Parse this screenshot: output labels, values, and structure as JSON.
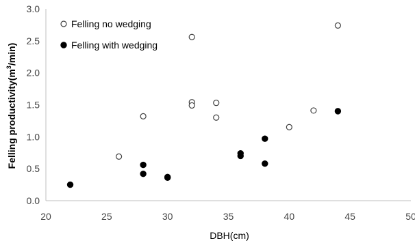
{
  "chart_data": {
    "type": "scatter",
    "title": "",
    "xlabel": "DBH(cm)",
    "ylabel": "Felling productivity(m³/min)",
    "ylabel_parts": {
      "before": "Felling productivity(m",
      "sup": "3",
      "after": "/min)"
    },
    "xlim": [
      20,
      50
    ],
    "ylim": [
      0,
      3.0
    ],
    "x_ticks": [
      20,
      25,
      30,
      35,
      40,
      45,
      50
    ],
    "y_ticks": [
      0.0,
      0.5,
      1.0,
      1.5,
      2.0,
      2.5,
      3.0
    ],
    "x_tick_labels": [
      "20",
      "25",
      "30",
      "35",
      "40",
      "45",
      "50"
    ],
    "y_tick_labels": [
      "0.0",
      "0.5",
      "1.0",
      "1.5",
      "2.0",
      "2.5",
      "3.0"
    ],
    "grid": false,
    "legend_position": "top-left",
    "series": [
      {
        "name": "Felling no wedging",
        "marker": "open-circle",
        "color": "#404040",
        "points": [
          {
            "x": 26,
            "y": 0.69
          },
          {
            "x": 28,
            "y": 1.32
          },
          {
            "x": 32,
            "y": 2.56
          },
          {
            "x": 32,
            "y": 1.54
          },
          {
            "x": 32,
            "y": 1.49
          },
          {
            "x": 34,
            "y": 1.53
          },
          {
            "x": 34,
            "y": 1.3
          },
          {
            "x": 40,
            "y": 1.15
          },
          {
            "x": 42,
            "y": 1.41
          },
          {
            "x": 44,
            "y": 2.74
          }
        ]
      },
      {
        "name": "Felling with wedging",
        "marker": "filled-circle",
        "color": "#000000",
        "points": [
          {
            "x": 22,
            "y": 0.25
          },
          {
            "x": 28,
            "y": 0.56
          },
          {
            "x": 28,
            "y": 0.42
          },
          {
            "x": 30,
            "y": 0.37
          },
          {
            "x": 30,
            "y": 0.36
          },
          {
            "x": 36,
            "y": 0.74
          },
          {
            "x": 36,
            "y": 0.7
          },
          {
            "x": 38,
            "y": 0.97
          },
          {
            "x": 38,
            "y": 0.58
          },
          {
            "x": 44,
            "y": 1.4
          }
        ]
      }
    ]
  }
}
